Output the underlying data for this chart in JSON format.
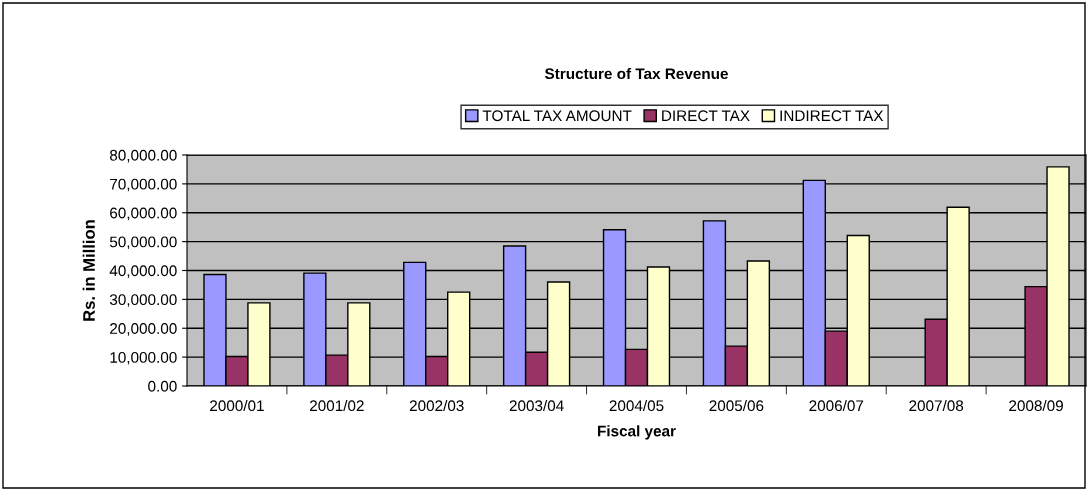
{
  "chart_data": {
    "type": "bar",
    "title": "Structure of Tax Revenue",
    "xlabel": "Fiscal year",
    "ylabel": "Rs. in Million",
    "categories": [
      "2000/01",
      "2001/02",
      "2002/03",
      "2003/04",
      "2004/05",
      "2005/06",
      "2006/07",
      "2007/08",
      "2008/09"
    ],
    "series": [
      {
        "name": "TOTAL TAX AMOUNT",
        "color": "#9999ff",
        "values": [
          38600,
          39100,
          42800,
          48500,
          54100,
          57200,
          71200,
          null,
          null
        ]
      },
      {
        "name": "DIRECT TAX",
        "color": "#993366",
        "values": [
          10200,
          10700,
          10200,
          11700,
          12700,
          13800,
          19000,
          23100,
          34400
        ]
      },
      {
        "name": "INDIRECT TAX",
        "color": "#ffffcc",
        "values": [
          28800,
          28800,
          32500,
          36000,
          41200,
          43300,
          52100,
          61900,
          75900
        ]
      }
    ],
    "ylim": [
      0,
      80000
    ],
    "yticks": [
      {
        "value": 0,
        "label": "0.00"
      },
      {
        "value": 10000,
        "label": "10,000.00"
      },
      {
        "value": 20000,
        "label": "20,000.00"
      },
      {
        "value": 30000,
        "label": "30,000.00"
      },
      {
        "value": 40000,
        "label": "40,000.00"
      },
      {
        "value": 50000,
        "label": "50,000.00"
      },
      {
        "value": 60000,
        "label": "60,000.00"
      },
      {
        "value": 70000,
        "label": "70,000.00"
      },
      {
        "value": 80000,
        "label": "80,000.00"
      }
    ],
    "grid": "y",
    "legend": "top"
  }
}
